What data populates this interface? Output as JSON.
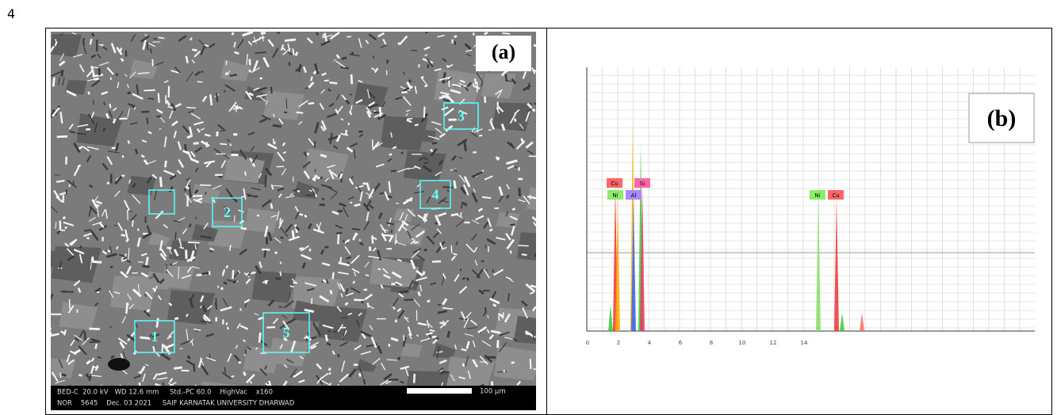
{
  "page_number": "4",
  "panel_a": {
    "label": "(a)",
    "regions": [
      "1",
      "2",
      "3",
      "4",
      "5"
    ],
    "footer_line_1": "BED-C  20.0 kV   WD 12.6 mm     Std.-PC 60.0    HighVac    x160",
    "footer_line_2": "NOR    5645    Dec. 03 2021     SAIF KARNATAK UNIVERSITY DHARWAD",
    "scale_bar": "100 µm"
  },
  "panel_b": {
    "label": "(b)",
    "peak_labels": [
      "Cu",
      "Ni",
      "Al",
      "Si",
      "Ni",
      "Cu"
    ],
    "x_ticks": [
      "0",
      "2",
      "4",
      "6",
      "8",
      "10",
      "12",
      "14"
    ]
  }
}
